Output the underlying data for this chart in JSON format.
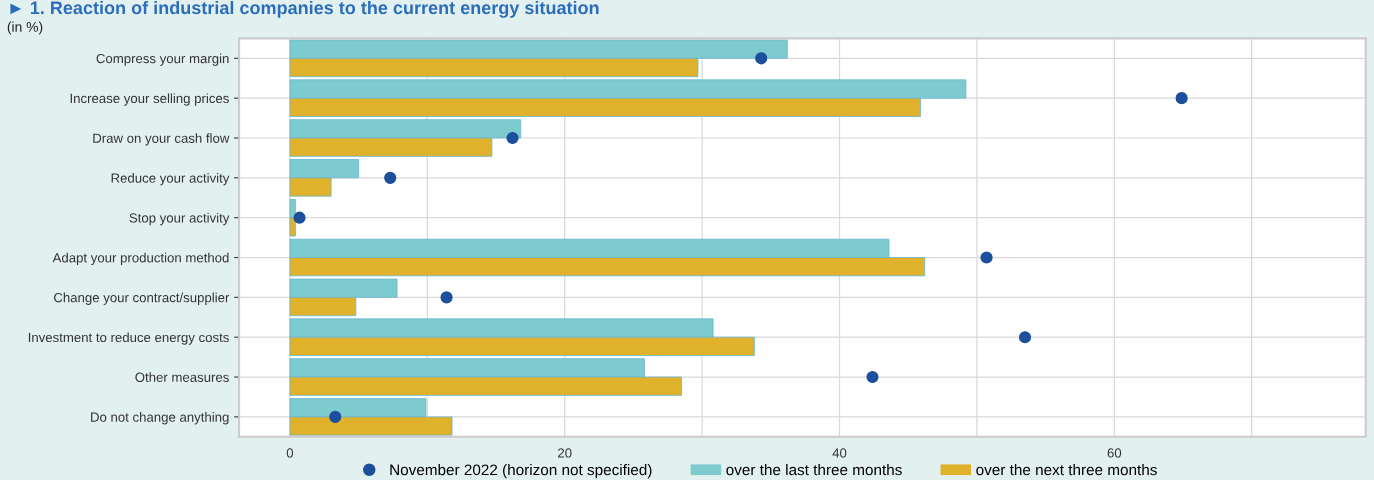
{
  "chart_data": {
    "type": "bar",
    "orientation": "horizontal",
    "title": "► 1. Reaction of industrial companies to the current energy situation",
    "subtitle": "(in %)",
    "categories": [
      "Compress your margin",
      "Increase your selling prices",
      "Draw on your cash flow",
      "Reduce your activity",
      "Stop your activity",
      "Adapt your production method",
      "Change your contract/supplier",
      "Investment to reduce energy costs",
      "Other measures",
      "Do not change anything"
    ],
    "series": [
      {
        "name": "November 2022 (horizon not specified)",
        "type": "scatter",
        "color": "#1c4f9c",
        "values": [
          34.3,
          64.9,
          16.2,
          7.3,
          0.7,
          50.7,
          11.4,
          53.5,
          42.4,
          3.3
        ]
      },
      {
        "name": "over the last three months",
        "color": "#7ecbcf",
        "values": [
          36.2,
          49.2,
          16.8,
          5.0,
          0.4,
          43.6,
          7.8,
          30.8,
          25.8,
          9.9
        ]
      },
      {
        "name": "over the next three months",
        "color": "#e0b12a",
        "values": [
          29.7,
          45.9,
          14.7,
          3.0,
          0.4,
          46.2,
          4.8,
          33.8,
          28.5,
          11.8
        ]
      }
    ],
    "xlim": [
      -3.7,
      78.3
    ],
    "xticks": [
      0,
      {
        "value": 10,
        "label": null
      },
      20,
      {
        "value": 30,
        "label": null
      },
      40,
      {
        "value": 50,
        "label": null
      },
      60,
      {
        "value": 70,
        "label": null
      }
    ],
    "grid": true,
    "legend": "bottom",
    "marker": "circle"
  }
}
